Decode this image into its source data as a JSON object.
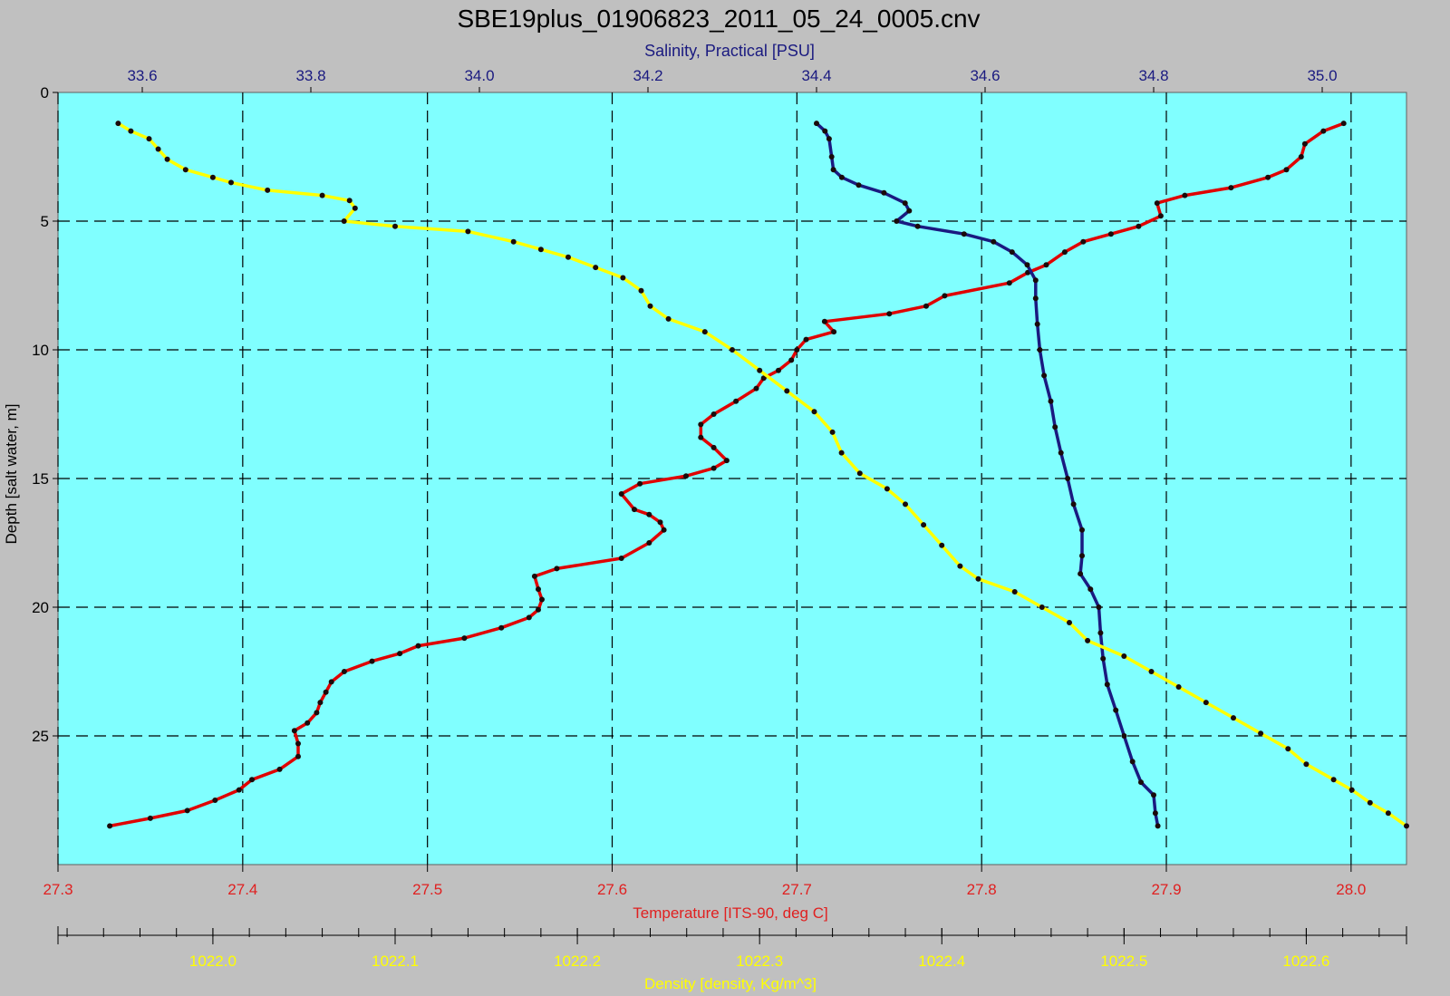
{
  "chart_data": {
    "type": "line",
    "title": "SBE19plus_01906823_2011_05_24_0005.cnv",
    "y_axis": {
      "label": "Depth [salt water, m]",
      "range": [
        0,
        30
      ],
      "ticks": [
        0,
        5,
        10,
        15,
        20,
        25
      ],
      "inverted": true
    },
    "x_axes": {
      "salinity": {
        "label": "Salinity, Practical [PSU]",
        "position": "top",
        "range": [
          33.5,
          35.1
        ],
        "ticks": [
          "33.6",
          "33.8",
          "34.0",
          "34.2",
          "34.4",
          "34.6",
          "34.8",
          "35.0"
        ],
        "color": "#1a1a80"
      },
      "temperature": {
        "label": "Temperature [ITS-90, deg C]",
        "position": "bottom",
        "range": [
          27.3,
          28.03
        ],
        "ticks": [
          "27.3",
          "27.4",
          "27.5",
          "27.6",
          "27.7",
          "27.8",
          "27.9",
          "28.0"
        ],
        "color": "#e02020"
      },
      "density": {
        "label": "Density [density, Kg/m^3]",
        "position": "bottom",
        "range": [
          1021.915,
          1022.655
        ],
        "ticks": [
          "1022.0",
          "1022.1",
          "1022.2",
          "1022.3",
          "1022.4",
          "1022.5",
          "1022.6"
        ],
        "color": "#ffff00"
      }
    },
    "grid": true,
    "series": [
      {
        "name": "Temperature [ITS-90, deg C]",
        "axis": "temperature",
        "color": "#e00000",
        "points": [
          [
            27.996,
            1.2
          ],
          [
            27.985,
            1.5
          ],
          [
            27.975,
            2.0
          ],
          [
            27.973,
            2.5
          ],
          [
            27.965,
            3.0
          ],
          [
            27.955,
            3.3
          ],
          [
            27.935,
            3.7
          ],
          [
            27.91,
            4.0
          ],
          [
            27.895,
            4.3
          ],
          [
            27.897,
            4.8
          ],
          [
            27.885,
            5.2
          ],
          [
            27.87,
            5.5
          ],
          [
            27.855,
            5.8
          ],
          [
            27.845,
            6.2
          ],
          [
            27.835,
            6.7
          ],
          [
            27.825,
            7.0
          ],
          [
            27.815,
            7.4
          ],
          [
            27.78,
            7.9
          ],
          [
            27.77,
            8.3
          ],
          [
            27.75,
            8.6
          ],
          [
            27.715,
            8.9
          ],
          [
            27.72,
            9.3
          ],
          [
            27.705,
            9.6
          ],
          [
            27.7,
            10.0
          ],
          [
            27.697,
            10.4
          ],
          [
            27.69,
            10.8
          ],
          [
            27.682,
            11.1
          ],
          [
            27.678,
            11.5
          ],
          [
            27.667,
            12.0
          ],
          [
            27.655,
            12.5
          ],
          [
            27.648,
            12.9
          ],
          [
            27.648,
            13.4
          ],
          [
            27.655,
            13.8
          ],
          [
            27.662,
            14.3
          ],
          [
            27.655,
            14.6
          ],
          [
            27.64,
            14.9
          ],
          [
            27.615,
            15.2
          ],
          [
            27.605,
            15.6
          ],
          [
            27.612,
            16.2
          ],
          [
            27.62,
            16.4
          ],
          [
            27.626,
            16.7
          ],
          [
            27.628,
            17.0
          ],
          [
            27.62,
            17.5
          ],
          [
            27.605,
            18.1
          ],
          [
            27.57,
            18.5
          ],
          [
            27.558,
            18.8
          ],
          [
            27.56,
            19.3
          ],
          [
            27.562,
            19.7
          ],
          [
            27.56,
            20.1
          ],
          [
            27.555,
            20.4
          ],
          [
            27.54,
            20.8
          ],
          [
            27.52,
            21.2
          ],
          [
            27.495,
            21.5
          ],
          [
            27.485,
            21.8
          ],
          [
            27.47,
            22.1
          ],
          [
            27.455,
            22.5
          ],
          [
            27.448,
            22.9
          ],
          [
            27.445,
            23.3
          ],
          [
            27.442,
            23.7
          ],
          [
            27.44,
            24.1
          ],
          [
            27.435,
            24.5
          ],
          [
            27.428,
            24.8
          ],
          [
            27.43,
            25.3
          ],
          [
            27.43,
            25.8
          ],
          [
            27.42,
            26.3
          ],
          [
            27.405,
            26.7
          ],
          [
            27.398,
            27.1
          ],
          [
            27.385,
            27.5
          ],
          [
            27.37,
            27.9
          ],
          [
            27.35,
            28.2
          ],
          [
            27.328,
            28.5
          ]
        ]
      },
      {
        "name": "Salinity, Practical [PSU]",
        "axis": "salinity",
        "color": "#1a1a80",
        "points": [
          [
            34.4,
            1.2
          ],
          [
            34.41,
            1.5
          ],
          [
            34.415,
            1.8
          ],
          [
            34.418,
            2.5
          ],
          [
            34.42,
            3.0
          ],
          [
            34.43,
            3.3
          ],
          [
            34.45,
            3.6
          ],
          [
            34.48,
            3.9
          ],
          [
            34.505,
            4.3
          ],
          [
            34.51,
            4.6
          ],
          [
            34.495,
            5.0
          ],
          [
            34.52,
            5.2
          ],
          [
            34.575,
            5.5
          ],
          [
            34.61,
            5.8
          ],
          [
            34.632,
            6.2
          ],
          [
            34.65,
            6.7
          ],
          [
            34.66,
            7.3
          ],
          [
            34.66,
            8.0
          ],
          [
            34.662,
            9.0
          ],
          [
            34.665,
            10.0
          ],
          [
            34.67,
            11.0
          ],
          [
            34.678,
            12.0
          ],
          [
            34.683,
            13.0
          ],
          [
            34.69,
            14.0
          ],
          [
            34.698,
            15.0
          ],
          [
            34.705,
            16.0
          ],
          [
            34.715,
            17.0
          ],
          [
            34.715,
            18.0
          ],
          [
            34.713,
            18.7
          ],
          [
            34.725,
            19.3
          ],
          [
            34.735,
            20.0
          ],
          [
            34.737,
            21.0
          ],
          [
            34.74,
            22.0
          ],
          [
            34.745,
            23.0
          ],
          [
            34.755,
            24.0
          ],
          [
            34.765,
            25.0
          ],
          [
            34.775,
            26.0
          ],
          [
            34.785,
            26.8
          ],
          [
            34.8,
            27.3
          ],
          [
            34.802,
            28.0
          ],
          [
            34.805,
            28.5
          ]
        ]
      },
      {
        "name": "Density [density, Kg/m^3]",
        "axis": "density",
        "color": "#ffff00",
        "points": [
          [
            1021.948,
            1.2
          ],
          [
            1021.955,
            1.5
          ],
          [
            1021.965,
            1.8
          ],
          [
            1021.97,
            2.2
          ],
          [
            1021.975,
            2.6
          ],
          [
            1021.985,
            3.0
          ],
          [
            1022.0,
            3.3
          ],
          [
            1022.01,
            3.5
          ],
          [
            1022.03,
            3.8
          ],
          [
            1022.06,
            4.0
          ],
          [
            1022.075,
            4.2
          ],
          [
            1022.078,
            4.5
          ],
          [
            1022.072,
            5.0
          ],
          [
            1022.1,
            5.2
          ],
          [
            1022.14,
            5.4
          ],
          [
            1022.165,
            5.8
          ],
          [
            1022.18,
            6.1
          ],
          [
            1022.195,
            6.4
          ],
          [
            1022.21,
            6.8
          ],
          [
            1022.225,
            7.2
          ],
          [
            1022.235,
            7.7
          ],
          [
            1022.24,
            8.3
          ],
          [
            1022.25,
            8.8
          ],
          [
            1022.27,
            9.3
          ],
          [
            1022.285,
            10.0
          ],
          [
            1022.3,
            10.8
          ],
          [
            1022.315,
            11.6
          ],
          [
            1022.33,
            12.4
          ],
          [
            1022.34,
            13.2
          ],
          [
            1022.345,
            14.0
          ],
          [
            1022.355,
            14.8
          ],
          [
            1022.37,
            15.4
          ],
          [
            1022.38,
            16.0
          ],
          [
            1022.39,
            16.8
          ],
          [
            1022.4,
            17.6
          ],
          [
            1022.41,
            18.4
          ],
          [
            1022.42,
            18.9
          ],
          [
            1022.44,
            19.4
          ],
          [
            1022.455,
            20.0
          ],
          [
            1022.47,
            20.6
          ],
          [
            1022.48,
            21.3
          ],
          [
            1022.5,
            21.9
          ],
          [
            1022.515,
            22.5
          ],
          [
            1022.53,
            23.1
          ],
          [
            1022.545,
            23.7
          ],
          [
            1022.56,
            24.3
          ],
          [
            1022.575,
            24.9
          ],
          [
            1022.59,
            25.5
          ],
          [
            1022.6,
            26.1
          ],
          [
            1022.615,
            26.7
          ],
          [
            1022.625,
            27.1
          ],
          [
            1022.635,
            27.6
          ],
          [
            1022.645,
            28.0
          ],
          [
            1022.655,
            28.5
          ]
        ]
      }
    ]
  }
}
